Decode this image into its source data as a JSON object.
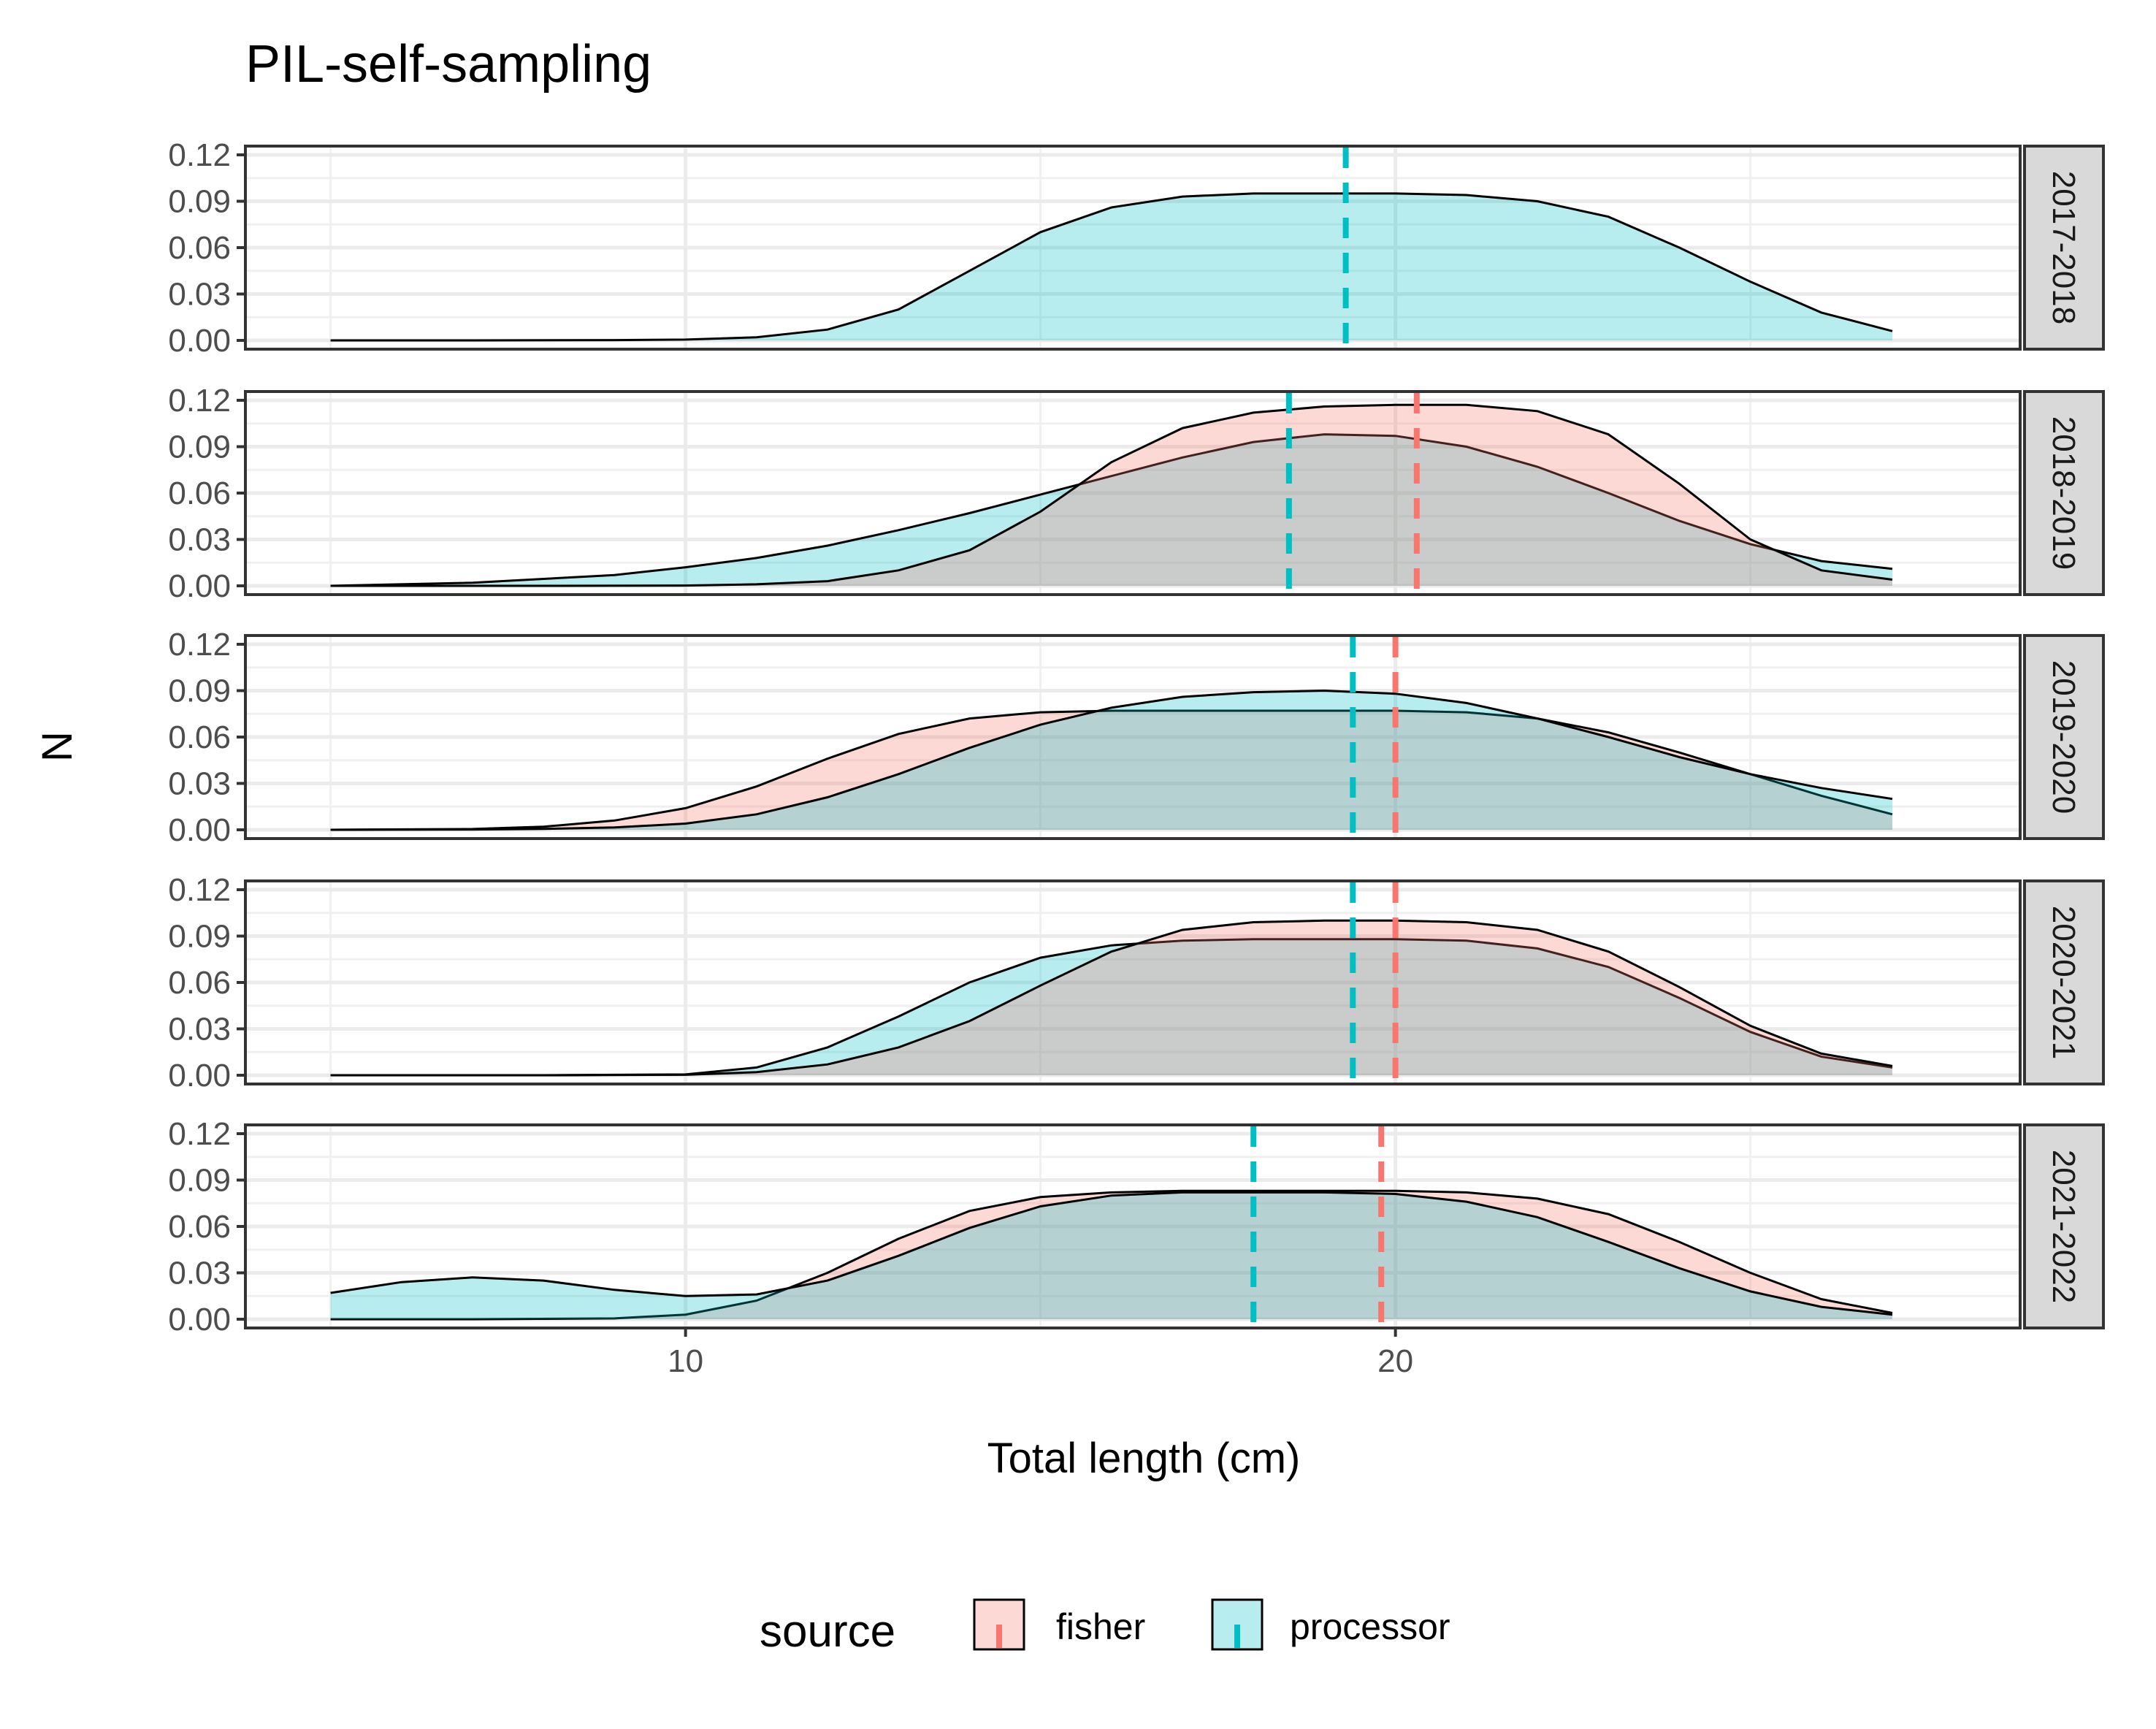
{
  "chart_data": {
    "type": "density",
    "title": "PIL-self-sampling",
    "xlabel": "Total length (cm)",
    "ylabel": "N",
    "xlim": [
      3.8,
      28.8
    ],
    "x_ticks": [
      10,
      20
    ],
    "ylim": [
      0,
      0.12
    ],
    "y_ticks": [
      "0.00",
      "0.03",
      "0.06",
      "0.09",
      "0.12"
    ],
    "grid": true,
    "legend": {
      "title": "source",
      "position": "bottom",
      "entries": [
        {
          "name": "fisher",
          "fill": "#F8766D"
        },
        {
          "name": "processor",
          "fill": "#00BFC4"
        }
      ]
    },
    "panels": [
      {
        "label": "2017-2018",
        "series": [
          {
            "name": "processor",
            "mean": 19.3,
            "x": [
              5,
              7,
              9,
              10,
              11,
              12,
              13,
              14,
              15,
              16,
              17,
              18,
              19,
              20,
              21,
              22,
              23,
              24,
              25,
              26,
              27
            ],
            "y": [
              0,
              0,
              0.0002,
              0.0005,
              0.002,
              0.007,
              0.02,
              0.045,
              0.07,
              0.086,
              0.093,
              0.095,
              0.095,
              0.095,
              0.094,
              0.09,
              0.08,
              0.06,
              0.038,
              0.018,
              0.006
            ]
          }
        ]
      },
      {
        "label": "2018-2019",
        "series": [
          {
            "name": "processor",
            "mean": 18.5,
            "x": [
              5,
              7,
              9,
              10,
              11,
              12,
              13,
              14,
              15,
              16,
              17,
              18,
              19,
              20,
              21,
              22,
              23,
              24,
              25,
              26,
              27
            ],
            "y": [
              0,
              0.002,
              0.007,
              0.012,
              0.018,
              0.026,
              0.036,
              0.047,
              0.059,
              0.071,
              0.083,
              0.093,
              0.098,
              0.097,
              0.09,
              0.077,
              0.06,
              0.042,
              0.027,
              0.016,
              0.011
            ]
          },
          {
            "name": "fisher",
            "mean": 20.3,
            "x": [
              5,
              8,
              10,
              11,
              12,
              13,
              14,
              15,
              16,
              17,
              18,
              19,
              20,
              21,
              22,
              23,
              24,
              25,
              26,
              27
            ],
            "y": [
              0,
              0,
              0.0002,
              0.001,
              0.003,
              0.01,
              0.023,
              0.048,
              0.08,
              0.102,
              0.112,
              0.116,
              0.117,
              0.117,
              0.113,
              0.098,
              0.066,
              0.03,
              0.01,
              0.004
            ]
          }
        ]
      },
      {
        "label": "2019-2020",
        "series": [
          {
            "name": "fisher",
            "mean": 20.0,
            "x": [
              5,
              7,
              8,
              9,
              10,
              11,
              12,
              13,
              14,
              15,
              16,
              17,
              18,
              19,
              20,
              21,
              22,
              23,
              24,
              25,
              26,
              27
            ],
            "y": [
              0,
              0.0005,
              0.002,
              0.006,
              0.014,
              0.028,
              0.046,
              0.062,
              0.072,
              0.076,
              0.077,
              0.077,
              0.077,
              0.077,
              0.077,
              0.076,
              0.072,
              0.063,
              0.05,
              0.036,
              0.022,
              0.01
            ]
          },
          {
            "name": "processor",
            "mean": 19.4,
            "x": [
              5,
              7,
              8,
              9,
              10,
              11,
              12,
              13,
              14,
              15,
              16,
              17,
              18,
              19,
              20,
              21,
              22,
              23,
              24,
              25,
              26,
              27
            ],
            "y": [
              0,
              0.0002,
              0.0006,
              0.0015,
              0.004,
              0.01,
              0.021,
              0.036,
              0.053,
              0.068,
              0.079,
              0.086,
              0.089,
              0.09,
              0.088,
              0.082,
              0.072,
              0.06,
              0.047,
              0.036,
              0.027,
              0.02
            ]
          }
        ]
      },
      {
        "label": "2020-2021",
        "series": [
          {
            "name": "processor",
            "mean": 19.4,
            "x": [
              5,
              8,
              10,
              11,
              12,
              13,
              14,
              15,
              16,
              17,
              18,
              19,
              20,
              21,
              22,
              23,
              24,
              25,
              26,
              27
            ],
            "y": [
              0,
              0,
              0.0005,
              0.005,
              0.018,
              0.038,
              0.06,
              0.076,
              0.084,
              0.087,
              0.088,
              0.088,
              0.088,
              0.087,
              0.082,
              0.07,
              0.05,
              0.028,
              0.012,
              0.005
            ]
          },
          {
            "name": "fisher",
            "mean": 20.0,
            "x": [
              5,
              8,
              10,
              11,
              12,
              13,
              14,
              15,
              16,
              17,
              18,
              19,
              20,
              21,
              22,
              23,
              24,
              25,
              26,
              27
            ],
            "y": [
              0,
              0,
              0.0003,
              0.002,
              0.007,
              0.018,
              0.035,
              0.058,
              0.08,
              0.094,
              0.099,
              0.1,
              0.1,
              0.099,
              0.094,
              0.08,
              0.057,
              0.032,
              0.014,
              0.006
            ]
          }
        ]
      },
      {
        "label": "2021-2022",
        "series": [
          {
            "name": "fisher",
            "mean": 19.8,
            "x": [
              5,
              7,
              9,
              10,
              11,
              12,
              13,
              14,
              15,
              16,
              17,
              18,
              19,
              20,
              21,
              22,
              23,
              24,
              25,
              26,
              27
            ],
            "y": [
              0,
              0,
              0.0005,
              0.003,
              0.012,
              0.03,
              0.052,
              0.07,
              0.079,
              0.082,
              0.083,
              0.083,
              0.083,
              0.083,
              0.082,
              0.078,
              0.068,
              0.05,
              0.03,
              0.013,
              0.004
            ]
          },
          {
            "name": "processor",
            "mean": 18.0,
            "x": [
              5,
              6,
              7,
              8,
              9,
              10,
              11,
              12,
              13,
              14,
              15,
              16,
              17,
              18,
              19,
              20,
              21,
              22,
              23,
              24,
              25,
              26,
              27
            ],
            "y": [
              0.017,
              0.024,
              0.027,
              0.025,
              0.019,
              0.015,
              0.016,
              0.025,
              0.041,
              0.059,
              0.073,
              0.08,
              0.082,
              0.082,
              0.082,
              0.081,
              0.076,
              0.066,
              0.05,
              0.033,
              0.018,
              0.008,
              0.003
            ]
          }
        ]
      }
    ]
  }
}
